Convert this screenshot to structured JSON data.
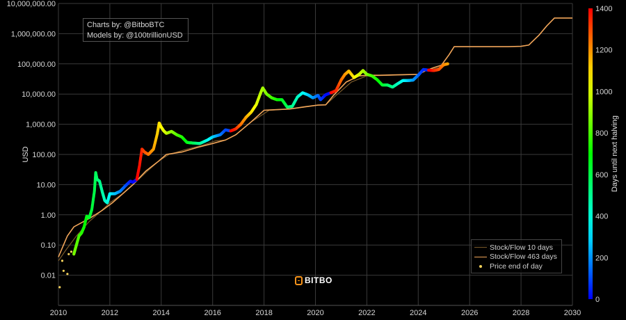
{
  "chart_data": {
    "type": "scatter",
    "title": "",
    "xlabel": "",
    "ylabel": "USD",
    "y_scale": "log",
    "ylim": [
      0.001,
      10000000
    ],
    "xlim": [
      2010,
      2030
    ],
    "x_ticks": [
      "2010",
      "2012",
      "2014",
      "2016",
      "2018",
      "2020",
      "2022",
      "2024",
      "2026",
      "2028",
      "2030"
    ],
    "y_ticks": [
      "0.01",
      "0.10",
      "1.00",
      "10.00",
      "100.00",
      "1,000.00",
      "10,000.00",
      "100,000.00",
      "1,000,000.00",
      "10,000,000.00"
    ],
    "colorbar": {
      "label": "Days until next halving",
      "range": [
        0,
        1400
      ],
      "ticks": [
        "0",
        "200",
        "400",
        "600",
        "800",
        "1000",
        "1200",
        "1400"
      ],
      "colorscale": "rainbow (blue at 0 → red at 1400)"
    },
    "grid": true,
    "legend_position": "bottom-right",
    "series": [
      {
        "name": "Stock/Flow 10 days",
        "kind": "line",
        "color": "#7a5a2a",
        "x": [
          2010.0,
          2010.3,
          2010.7,
          2011.2,
          2011.6,
          2012.0,
          2012.5,
          2012.9,
          2013.4,
          2013.9,
          2014.3,
          2015.0,
          2015.6,
          2016.1,
          2016.5,
          2016.9,
          2017.5,
          2018.2,
          2019.0,
          2019.6,
          2020.1,
          2020.4,
          2020.8,
          2021.4,
          2022.0,
          2023.0,
          2024.0,
          2024.3,
          2024.8,
          2025.1
        ],
        "y": [
          0.03,
          0.07,
          0.2,
          0.6,
          1.2,
          2.5,
          5,
          10,
          25,
          60,
          100,
          150,
          200,
          280,
          300,
          450,
          1200,
          2900,
          3200,
          3700,
          4300,
          4400,
          9000,
          25000,
          40000,
          42000,
          45000,
          60000,
          75000,
          90000
        ]
      },
      {
        "name": "Stock/Flow 463 days",
        "kind": "line",
        "color": "#f2a65a",
        "x": [
          2010.0,
          2010.15,
          2010.35,
          2010.6,
          2010.9,
          2011.3,
          2011.7,
          2012.1,
          2012.5,
          2012.9,
          2013.4,
          2013.9,
          2014.2,
          2014.8,
          2015.4,
          2016.0,
          2016.5,
          2016.9,
          2017.5,
          2018.0,
          2018.3,
          2019.0,
          2019.6,
          2020.1,
          2020.4,
          2020.7,
          2021.2,
          2021.7,
          2022.0,
          2022.5,
          2023.0,
          2023.5,
          2024.0,
          2024.3,
          2024.6,
          2024.9,
          2025.2,
          2025.4,
          2025.9,
          2026.5,
          2027.0,
          2027.5,
          2028.0,
          2028.3,
          2028.7,
          2029.0,
          2029.3,
          2029.6,
          2030.0
        ],
        "y": [
          0.04,
          0.08,
          0.2,
          0.4,
          0.55,
          0.85,
          1.4,
          2.5,
          5,
          10,
          28,
          60,
          100,
          120,
          170,
          230,
          300,
          450,
          1200,
          2900,
          3000,
          3200,
          3800,
          4300,
          4400,
          9000,
          25000,
          40000,
          42000,
          42000,
          43000,
          44000,
          45000,
          60000,
          75000,
          90000,
          200000,
          370000,
          370000,
          370000,
          370000,
          370000,
          380000,
          420000,
          900000,
          1800000,
          3300000,
          3300000,
          3300000
        ]
      },
      {
        "name": "Price end of day",
        "kind": "scatter",
        "color_by": "days until next halving",
        "x": [
          2010.05,
          2010.15,
          2010.2,
          2010.35,
          2010.4,
          2010.5,
          2010.6,
          2010.7,
          2010.8,
          2010.9,
          2011.0,
          2011.1,
          2011.2,
          2011.3,
          2011.4,
          2011.45,
          2011.5,
          2011.6,
          2011.7,
          2011.8,
          2011.9,
          2012.0,
          2012.2,
          2012.4,
          2012.6,
          2012.8,
          2012.9,
          2013.05,
          2013.15,
          2013.25,
          2013.35,
          2013.5,
          2013.7,
          2013.85,
          2013.92,
          2014.0,
          2014.1,
          2014.2,
          2014.4,
          2014.6,
          2014.8,
          2015.0,
          2015.2,
          2015.5,
          2015.8,
          2016.0,
          2016.3,
          2016.5,
          2016.7,
          2016.9,
          2017.1,
          2017.3,
          2017.5,
          2017.7,
          2017.85,
          2017.95,
          2018.1,
          2018.3,
          2018.5,
          2018.7,
          2018.9,
          2019.1,
          2019.3,
          2019.5,
          2019.7,
          2019.9,
          2020.1,
          2020.2,
          2020.4,
          2020.6,
          2020.8,
          2021.0,
          2021.15,
          2021.3,
          2021.5,
          2021.7,
          2021.85,
          2022.0,
          2022.2,
          2022.4,
          2022.6,
          2022.8,
          2023.0,
          2023.2,
          2023.4,
          2023.6,
          2023.8,
          2024.0,
          2024.2,
          2024.4,
          2024.6,
          2024.8,
          2025.0,
          2025.15
        ],
        "y": [
          0.004,
          0.03,
          0.014,
          0.011,
          0.05,
          0.06,
          0.05,
          0.1,
          0.2,
          0.25,
          0.4,
          0.9,
          0.8,
          1.5,
          6,
          25,
          15,
          13,
          6,
          3,
          2.5,
          5,
          5,
          6,
          9,
          13,
          12,
          15,
          40,
          150,
          120,
          100,
          150,
          500,
          1100,
          800,
          600,
          500,
          580,
          450,
          380,
          250,
          240,
          230,
          300,
          380,
          450,
          650,
          600,
          700,
          1000,
          1700,
          2500,
          4500,
          10000,
          16000,
          10000,
          7500,
          6500,
          6500,
          3700,
          3900,
          8000,
          11000,
          9500,
          7500,
          9000,
          6500,
          9500,
          11000,
          13000,
          29000,
          45000,
          58000,
          35000,
          45000,
          60000,
          45000,
          40000,
          30000,
          20000,
          20000,
          17000,
          22000,
          28000,
          28000,
          29000,
          42000,
          65000,
          62000,
          60000,
          65000,
          95000,
          100000
        ],
        "days_until_halving": [
          1050,
          1000,
          980,
          950,
          920,
          900,
          870,
          830,
          800,
          760,
          720,
          680,
          640,
          620,
          600,
          580,
          560,
          520,
          480,
          440,
          400,
          350,
          280,
          200,
          120,
          40,
          10,
          1400,
          1380,
          1350,
          1300,
          1250,
          1180,
          1120,
          1100,
          1060,
          1020,
          980,
          900,
          830,
          750,
          680,
          600,
          500,
          380,
          300,
          180,
          100,
          1400,
          1350,
          1250,
          1180,
          1100,
          1020,
          960,
          930,
          880,
          800,
          730,
          660,
          590,
          510,
          440,
          370,
          300,
          220,
          150,
          100,
          20,
          1400,
          1350,
          1260,
          1200,
          1150,
          1080,
          1000,
          950,
          880,
          800,
          730,
          650,
          580,
          510,
          440,
          370,
          300,
          220,
          150,
          60,
          1440,
          1360,
          1300,
          1220,
          1180
        ]
      }
    ]
  },
  "credits": {
    "line1": "Charts by: @BitboBTC",
    "line2": "Models by: @100trillionUSD"
  },
  "logo": {
    "text": "BITBO",
    "color": "#f7931a"
  },
  "colors": {
    "background": "#000000",
    "grid": "#3a3a3a"
  }
}
